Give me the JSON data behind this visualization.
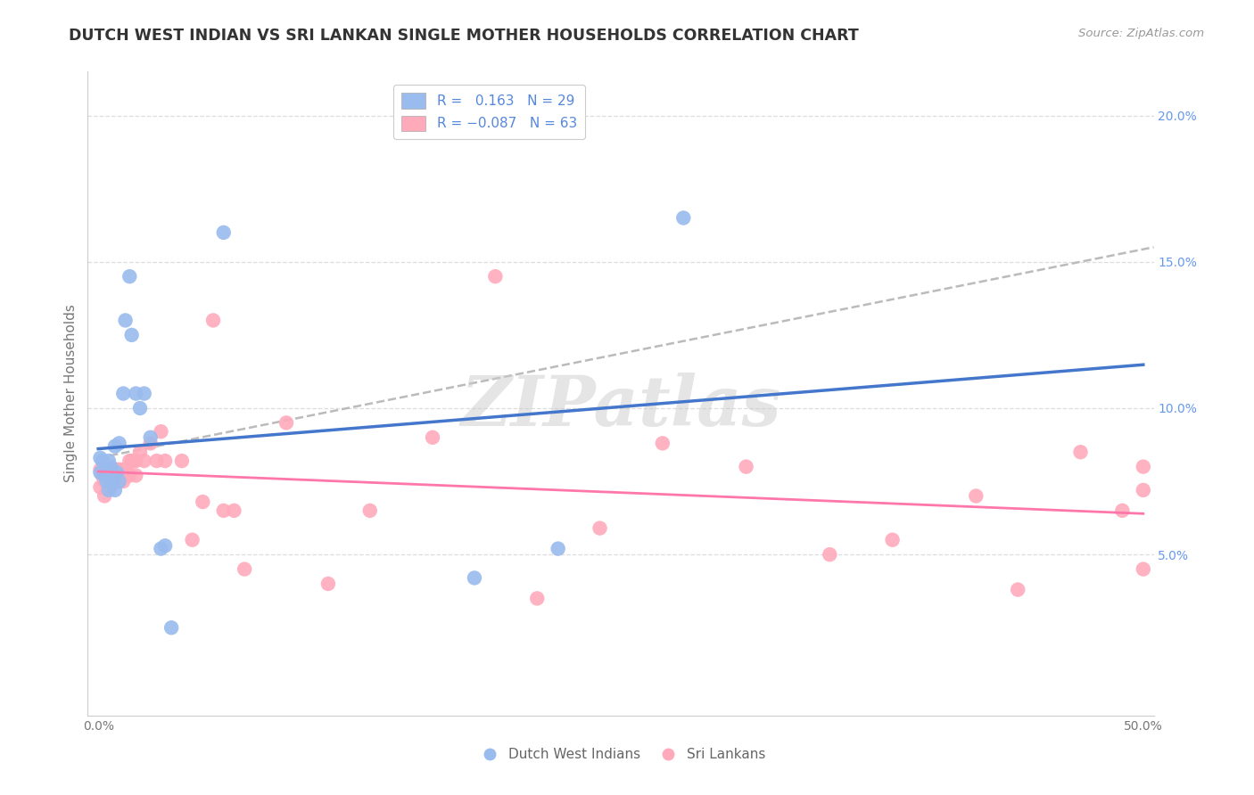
{
  "title": "DUTCH WEST INDIAN VS SRI LANKAN SINGLE MOTHER HOUSEHOLDS CORRELATION CHART",
  "source": "Source: ZipAtlas.com",
  "ylabel": "Single Mother Households",
  "xlabel_ticks": [
    "0.0%",
    "",
    "",
    "",
    "",
    "50.0%"
  ],
  "xlabel_vals": [
    0.0,
    0.1,
    0.2,
    0.3,
    0.4,
    0.5
  ],
  "ylabel_ticks_right": [
    "20.0%",
    "15.0%",
    "10.0%",
    "5.0%"
  ],
  "ylabel_vals_right": [
    0.2,
    0.15,
    0.1,
    0.05
  ],
  "xlim": [
    -0.005,
    0.505
  ],
  "ylim": [
    -0.005,
    0.215
  ],
  "blue_color": "#99BBEE",
  "pink_color": "#FFAABB",
  "blue_line_color": "#4477CC",
  "pink_line_color": "#FF77AA",
  "dashed_line_color": "#BBBBBB",
  "watermark": "ZIPatlas",
  "dutch_label": "Dutch West Indians",
  "sri_label": "Sri Lankans",
  "dutch_x": [
    0.001,
    0.001,
    0.002,
    0.003,
    0.004,
    0.005,
    0.005,
    0.006,
    0.007,
    0.008,
    0.008,
    0.009,
    0.01,
    0.01,
    0.012,
    0.013,
    0.015,
    0.016,
    0.018,
    0.02,
    0.022,
    0.025,
    0.03,
    0.032,
    0.035,
    0.06,
    0.18,
    0.22,
    0.28
  ],
  "dutch_y": [
    0.083,
    0.078,
    0.082,
    0.077,
    0.075,
    0.082,
    0.072,
    0.08,
    0.075,
    0.072,
    0.087,
    0.078,
    0.075,
    0.088,
    0.105,
    0.13,
    0.145,
    0.125,
    0.105,
    0.1,
    0.105,
    0.09,
    0.052,
    0.053,
    0.025,
    0.16,
    0.042,
    0.052,
    0.165
  ],
  "sri_x": [
    0.001,
    0.001,
    0.002,
    0.003,
    0.003,
    0.004,
    0.004,
    0.005,
    0.005,
    0.005,
    0.006,
    0.006,
    0.006,
    0.007,
    0.007,
    0.008,
    0.008,
    0.009,
    0.009,
    0.01,
    0.01,
    0.011,
    0.012,
    0.012,
    0.013,
    0.014,
    0.015,
    0.015,
    0.016,
    0.017,
    0.018,
    0.018,
    0.02,
    0.022,
    0.025,
    0.028,
    0.03,
    0.032,
    0.04,
    0.045,
    0.05,
    0.055,
    0.06,
    0.065,
    0.07,
    0.09,
    0.11,
    0.13,
    0.16,
    0.19,
    0.21,
    0.24,
    0.27,
    0.31,
    0.35,
    0.38,
    0.42,
    0.44,
    0.47,
    0.49,
    0.5,
    0.5,
    0.5
  ],
  "sri_y": [
    0.079,
    0.073,
    0.077,
    0.075,
    0.07,
    0.079,
    0.074,
    0.079,
    0.075,
    0.073,
    0.079,
    0.076,
    0.073,
    0.079,
    0.075,
    0.079,
    0.075,
    0.079,
    0.075,
    0.079,
    0.075,
    0.078,
    0.079,
    0.075,
    0.079,
    0.078,
    0.082,
    0.077,
    0.082,
    0.082,
    0.082,
    0.077,
    0.085,
    0.082,
    0.088,
    0.082,
    0.092,
    0.082,
    0.082,
    0.055,
    0.068,
    0.13,
    0.065,
    0.065,
    0.045,
    0.095,
    0.04,
    0.065,
    0.09,
    0.145,
    0.035,
    0.059,
    0.088,
    0.08,
    0.05,
    0.055,
    0.07,
    0.038,
    0.085,
    0.065,
    0.045,
    0.08,
    0.072
  ]
}
